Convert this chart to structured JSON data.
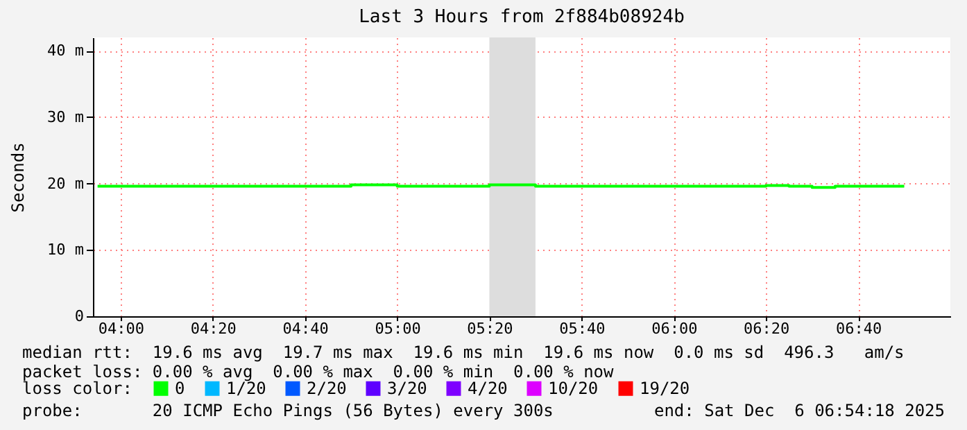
{
  "chart_data": {
    "type": "step",
    "title": "Last 3 Hours from 2f884b08924b",
    "ylabel": "Seconds",
    "legend_title": "loss color:",
    "legend": "bottom left",
    "grid": true,
    "x": [
      3.9167,
      4,
      4.0833,
      4.1667,
      4.25,
      4.3333,
      4.4167,
      4.5,
      4.5833,
      4.6667,
      4.75,
      4.8333,
      4.9167,
      5,
      5.0833,
      5.1667,
      5.25,
      5.3333,
      5.4167,
      5.5,
      5.5833,
      5.6667,
      5.75,
      5.8333,
      5.9167,
      6,
      6.0833,
      6.1667,
      6.25,
      6.3333,
      6.4167,
      6.5,
      6.5833,
      6.6667,
      6.75,
      6.8333
    ],
    "series": [
      {
        "name": "0",
        "color": "#00ff00",
        "values": [
          19.6,
          19.6,
          19.6,
          19.6,
          19.6,
          19.6,
          19.6,
          19.6,
          19.6,
          19.6,
          19.6,
          19.8,
          19.8,
          19.6,
          19.6,
          19.6,
          19.6,
          19.8,
          19.8,
          19.6,
          19.6,
          19.6,
          19.6,
          19.6,
          19.6,
          19.6,
          19.6,
          19.6,
          19.6,
          19.7,
          19.6,
          19.4,
          19.6,
          19.6,
          19.6,
          19.6
        ]
      },
      {
        "name": "1/20",
        "color": "#00b8ff",
        "values": [
          null,
          null,
          null,
          null,
          null,
          null,
          null,
          null,
          null,
          null,
          null,
          null,
          null,
          null,
          null,
          null,
          null,
          null,
          null,
          null,
          null,
          null,
          null,
          null,
          null,
          null,
          null,
          null,
          null,
          null,
          null,
          null,
          null,
          null,
          null,
          null
        ]
      },
      {
        "name": "2/20",
        "color": "#0059ff",
        "values": [
          null,
          null,
          null,
          null,
          null,
          null,
          null,
          null,
          null,
          null,
          null,
          null,
          null,
          null,
          null,
          null,
          null,
          null,
          null,
          null,
          null,
          null,
          null,
          null,
          null,
          null,
          null,
          null,
          null,
          null,
          null,
          null,
          null,
          null,
          null,
          null
        ]
      },
      {
        "name": "3/20",
        "color": "#5e00ff",
        "values": [
          null,
          null,
          null,
          null,
          null,
          null,
          null,
          null,
          null,
          null,
          null,
          null,
          null,
          null,
          null,
          null,
          null,
          null,
          null,
          null,
          null,
          null,
          null,
          null,
          null,
          null,
          null,
          null,
          null,
          null,
          null,
          null,
          null,
          null,
          null,
          null
        ]
      },
      {
        "name": "4/20",
        "color": "#7e00ff",
        "values": [
          null,
          null,
          null,
          null,
          null,
          null,
          null,
          null,
          null,
          null,
          null,
          null,
          null,
          null,
          null,
          null,
          null,
          null,
          null,
          null,
          null,
          null,
          null,
          null,
          null,
          null,
          null,
          null,
          null,
          null,
          null,
          null,
          null,
          null,
          null,
          null
        ]
      },
      {
        "name": "10/20",
        "color": "#dd00ff",
        "values": [
          null,
          null,
          null,
          null,
          null,
          null,
          null,
          null,
          null,
          null,
          null,
          null,
          null,
          null,
          null,
          null,
          null,
          null,
          null,
          null,
          null,
          null,
          null,
          null,
          null,
          null,
          null,
          null,
          null,
          null,
          null,
          null,
          null,
          null,
          null,
          null
        ]
      },
      {
        "name": "19/20",
        "color": "#ff0000",
        "values": [
          null,
          null,
          null,
          null,
          null,
          null,
          null,
          null,
          null,
          null,
          null,
          null,
          null,
          null,
          null,
          null,
          null,
          null,
          null,
          null,
          null,
          null,
          null,
          null,
          null,
          null,
          null,
          null,
          null,
          null,
          null,
          null,
          null,
          null,
          null,
          null
        ]
      }
    ],
    "xlim": [
      3.9,
      7.0
    ],
    "xticks": [
      {
        "value": 4,
        "label": "04:00"
      },
      {
        "value": 4.3333,
        "label": "04:20"
      },
      {
        "value": 4.6667,
        "label": "04:40"
      },
      {
        "value": 5,
        "label": "05:00"
      },
      {
        "value": 5.3333,
        "label": "05:20"
      },
      {
        "value": 5.6667,
        "label": "05:40"
      },
      {
        "value": 6,
        "label": "06:00"
      },
      {
        "value": 6.3333,
        "label": "06:20"
      },
      {
        "value": 6.6667,
        "label": "06:40"
      }
    ],
    "ylim": [
      0,
      42
    ],
    "yticks": [
      0,
      {
        "value": 10,
        "label": "10 m"
      },
      {
        "value": 20,
        "label": "20 m"
      },
      {
        "value": 30,
        "label": "30 m"
      },
      {
        "value": 40,
        "label": "40 m"
      }
    ],
    "bands": [
      {
        "axis": "x",
        "from": 5.3333,
        "to": 5.5,
        "color": "#dddddd"
      }
    ],
    "annotations": [
      "median rtt:  19.6 ms avg  19.7 ms max  19.6 ms min  19.6 ms now  0.0 ms sd  496.3   am/s",
      "packet loss: 0.00 % avg  0.00 % max  0.00 % min  0.00 % now",
      "probe:       20 ICMP Echo Pings (56 Bytes) every 300s",
      "end: Sat Dec  6 06:54:18 2025"
    ]
  }
}
